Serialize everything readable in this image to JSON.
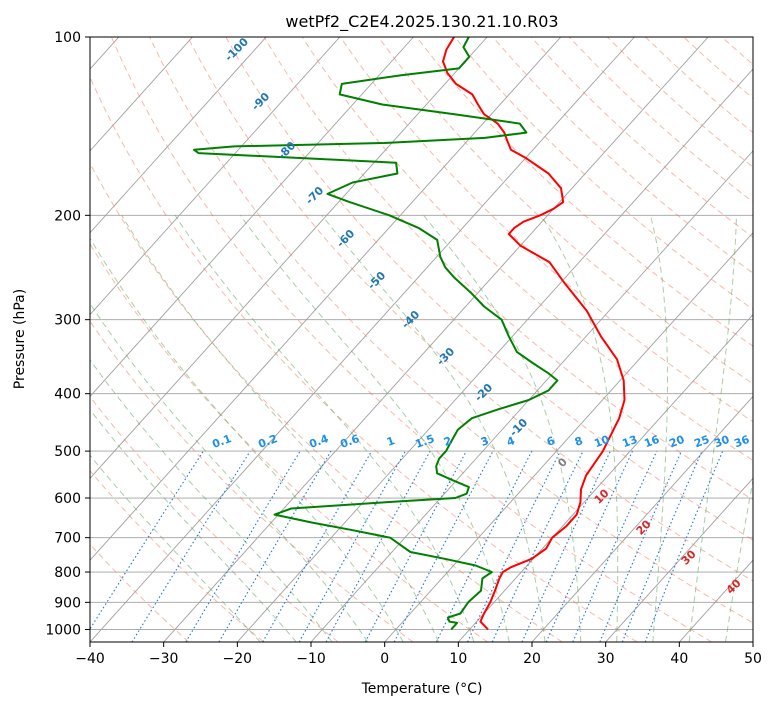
{
  "chart_data": {
    "type": "line",
    "title": "wetPf2_C2E4.2025.130.21.10.R03",
    "xlabel": "Temperature (°C)",
    "ylabel": "Pressure (hPa)",
    "xlim": [
      -40,
      50
    ],
    "ylim": [
      1050,
      100
    ],
    "y_scale": "log",
    "grid": true,
    "x_ticks": [
      -40,
      -30,
      -20,
      -10,
      0,
      10,
      20,
      30,
      40,
      50
    ],
    "y_ticks": [
      100,
      200,
      300,
      400,
      500,
      600,
      700,
      800,
      900,
      1000
    ],
    "skew": 45,
    "series": [
      {
        "color": "#ff0000",
        "points": [
          [
            12.5,
            1000
          ],
          [
            10.5,
            970
          ],
          [
            10.0,
            940
          ],
          [
            9.5,
            900
          ],
          [
            8.7,
            860
          ],
          [
            7.8,
            820
          ],
          [
            7.5,
            800
          ],
          [
            8.0,
            785
          ],
          [
            9.8,
            760
          ],
          [
            10.5,
            730
          ],
          [
            10.0,
            700
          ],
          [
            10.5,
            670
          ],
          [
            10.5,
            640
          ],
          [
            9.5,
            610
          ],
          [
            8.0,
            580
          ],
          [
            7.0,
            550
          ],
          [
            6.3,
            500
          ],
          [
            4.5,
            440
          ],
          [
            3.0,
            410
          ],
          [
            0.5,
            380
          ],
          [
            -3.0,
            350
          ],
          [
            -8.0,
            320
          ],
          [
            -13.0,
            290
          ],
          [
            -19.5,
            260
          ],
          [
            -24.0,
            240
          ],
          [
            -30.0,
            225
          ],
          [
            -33.0,
            215
          ],
          [
            -33.0,
            210
          ],
          [
            -32.5,
            205
          ],
          [
            -31.0,
            200
          ],
          [
            -30.0,
            195
          ],
          [
            -29.5,
            190
          ],
          [
            -31.5,
            180
          ],
          [
            -35.0,
            170
          ],
          [
            -40.0,
            160
          ],
          [
            -43.0,
            155
          ],
          [
            -44.5,
            150
          ],
          [
            -46.0,
            145
          ],
          [
            -48.0,
            140
          ],
          [
            -51.0,
            135
          ],
          [
            -53.0,
            130
          ],
          [
            -55.0,
            125
          ],
          [
            -58.5,
            120
          ],
          [
            -61.0,
            115
          ],
          [
            -63.0,
            110
          ],
          [
            -64.0,
            105
          ],
          [
            -64.5,
            100
          ]
        ]
      },
      {
        "color": "#008000",
        "points": [
          [
            7.5,
            1000
          ],
          [
            7.5,
            975
          ],
          [
            6.3,
            970
          ],
          [
            5.6,
            955
          ],
          [
            6.8,
            940
          ],
          [
            6.5,
            900
          ],
          [
            6.8,
            860
          ],
          [
            5.5,
            820
          ],
          [
            6.0,
            800
          ],
          [
            3.0,
            780
          ],
          [
            -2.0,
            760
          ],
          [
            -7.5,
            740
          ],
          [
            -12.0,
            700
          ],
          [
            -18.0,
            680
          ],
          [
            -24.5,
            660
          ],
          [
            -30.5,
            640
          ],
          [
            -29.0,
            625
          ],
          [
            -17.0,
            610
          ],
          [
            -8.0,
            600
          ],
          [
            -7.0,
            590
          ],
          [
            -7.5,
            575
          ],
          [
            -10.5,
            560
          ],
          [
            -13.5,
            545
          ],
          [
            -14.5,
            530
          ],
          [
            -15.0,
            515
          ],
          [
            -15.0,
            500
          ],
          [
            -15.5,
            480
          ],
          [
            -16.0,
            460
          ],
          [
            -15.5,
            440
          ],
          [
            -13.0,
            425
          ],
          [
            -10.0,
            410
          ],
          [
            -8.5,
            395
          ],
          [
            -8.5,
            380
          ],
          [
            -10.5,
            370
          ],
          [
            -14.0,
            355
          ],
          [
            -17.5,
            340
          ],
          [
            -20.5,
            320
          ],
          [
            -23.5,
            300
          ],
          [
            -27.5,
            285
          ],
          [
            -31.0,
            270
          ],
          [
            -35.0,
            255
          ],
          [
            -37.5,
            245
          ],
          [
            -39.5,
            235
          ],
          [
            -42.0,
            220
          ],
          [
            -46.0,
            210
          ],
          [
            -51.5,
            200
          ],
          [
            -58.5,
            190
          ],
          [
            -62.5,
            184
          ],
          [
            -60.5,
            176
          ],
          [
            -55.5,
            170
          ],
          [
            -57.0,
            163
          ],
          [
            -71.0,
            160
          ],
          [
            -85.0,
            157
          ],
          [
            -86.0,
            155
          ],
          [
            -81.0,
            153
          ],
          [
            -61.0,
            151
          ],
          [
            -48.0,
            148
          ],
          [
            -43.0,
            145
          ],
          [
            -45.0,
            140
          ],
          [
            -55.0,
            135
          ],
          [
            -66.0,
            130
          ],
          [
            -73.0,
            125
          ],
          [
            -74.0,
            120
          ],
          [
            -67.0,
            116
          ],
          [
            -60.0,
            113
          ],
          [
            -60.0,
            108
          ],
          [
            -62.0,
            104
          ],
          [
            -62.5,
            100
          ]
        ]
      }
    ],
    "dry_adiabat_labels": [
      -100,
      -90,
      -80,
      -70,
      -60,
      -50,
      -40,
      -30,
      -20,
      -10
    ],
    "moist_adiabat_labels": [
      0,
      10,
      20,
      30,
      40
    ],
    "mixing_ratio_labels": [
      "0.1",
      "0.2",
      "0.4",
      "0.6",
      "1",
      "1.5",
      "2",
      "3",
      "4",
      "6",
      "8",
      "10",
      "13",
      "16",
      "20",
      "25",
      "30",
      "36"
    ],
    "colors": {
      "temperature": "#ff0000",
      "dewpoint": "#008000",
      "dry_adiabat": "#f08060",
      "moist_adiabat": "#50a050",
      "mixing_ratio": "#1f77d4",
      "isotherm": "#a0a0a0",
      "dry_label": "#1f77b4",
      "moist_label": "#d62728",
      "mixing_label": "#1f8fe8"
    }
  }
}
